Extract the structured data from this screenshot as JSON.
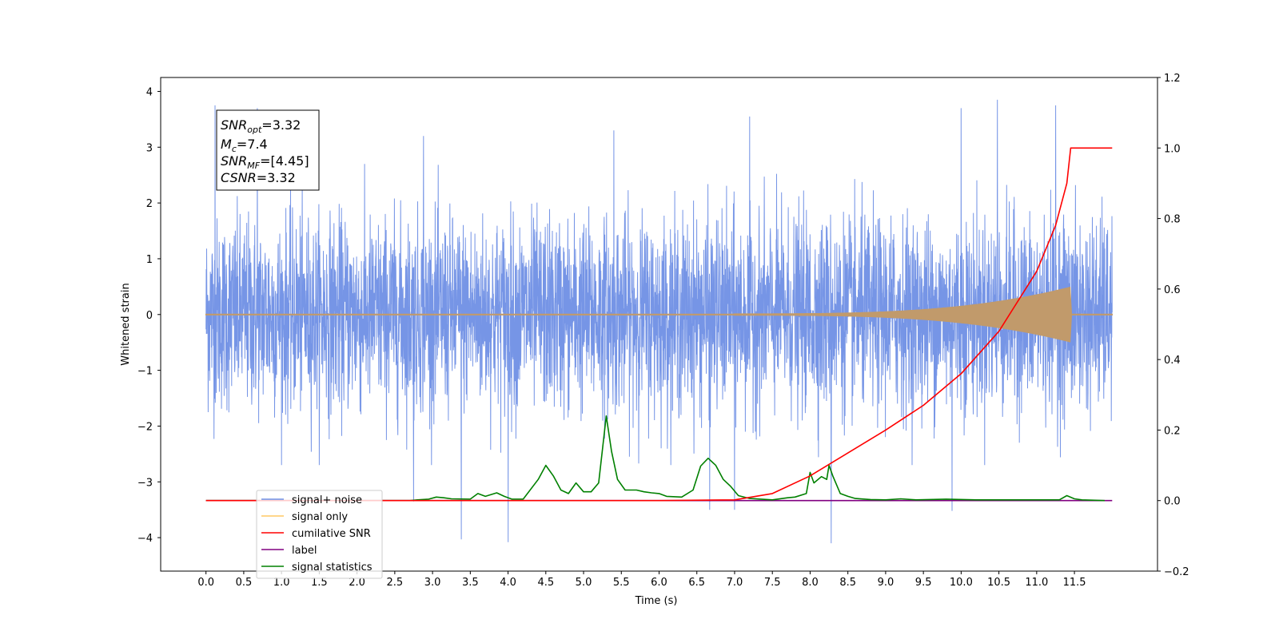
{
  "chart_data": {
    "type": "line",
    "title": "",
    "xlabel": "Time (s)",
    "ylabel": "Whitened strain",
    "xlim": [
      -0.6,
      12.6
    ],
    "ylim": [
      -4.6,
      4.25
    ],
    "y2lim": [
      -0.2,
      1.2
    ],
    "x_ticks": [
      "0.0",
      "0.5",
      "1.0",
      "1.5",
      "2.0",
      "2.5",
      "3.0",
      "3.5",
      "4.0",
      "4.5",
      "5.0",
      "5.5",
      "6.0",
      "6.5",
      "7.0",
      "7.5",
      "8.0",
      "8.5",
      "9.0",
      "9.5",
      "10.0",
      "10.5",
      "11.0",
      "11.5"
    ],
    "y_ticks": [
      "−4",
      "−3",
      "−2",
      "−1",
      "0",
      "1",
      "2",
      "3",
      "4"
    ],
    "y2_ticks": [
      "−0.2",
      "0.0",
      "0.2",
      "0.4",
      "0.6",
      "0.8",
      "1.0",
      "1.2"
    ],
    "legend_position": "lower-left",
    "annotation": {
      "snr_opt": {
        "sym": "SNR",
        "sub": "opt",
        "value": "=3.32"
      },
      "mc": {
        "sym": "M",
        "sub": "c",
        "value": "=7.4"
      },
      "snr_mf": {
        "sym": "SNR",
        "sub": "MF",
        "value": "=[4.45]"
      },
      "csnr": {
        "sym": "CSNR",
        "sub": "",
        "value": "=3.32"
      }
    },
    "series": [
      {
        "name": "signal+ noise",
        "color": "#6f8fe5",
        "axis": "left",
        "x_range": [
          0.0,
          12.0
        ],
        "typical_abs_max": 2.3,
        "peaks": [
          [
            0.12,
            3.75
          ],
          [
            0.68,
            3.7
          ],
          [
            2.88,
            3.2
          ],
          [
            5.4,
            3.3
          ],
          [
            7.2,
            3.55
          ],
          [
            10.0,
            3.7
          ],
          [
            10.48,
            3.85
          ],
          [
            11.25,
            3.75
          ],
          [
            3.38,
            -4.03
          ],
          [
            4.0,
            -4.08
          ],
          [
            8.28,
            -4.1
          ],
          [
            9.88,
            -3.52
          ],
          [
            6.67,
            -3.5
          ],
          [
            7.0,
            -3.5
          ],
          [
            2.75,
            -3.35
          ]
        ]
      },
      {
        "name": "signal only",
        "color": "#c19a6b",
        "axis": "left",
        "x_range": [
          0.0,
          12.0
        ],
        "chirp_onset": 7.0,
        "merger_time": 11.45,
        "peak_amplitude": 0.48
      },
      {
        "name": "cumilative SNR",
        "color": "#ff0000",
        "axis": "right",
        "x": [
          0.0,
          6.0,
          7.0,
          7.5,
          8.0,
          8.5,
          9.0,
          9.5,
          10.0,
          10.5,
          11.0,
          11.25,
          11.4,
          11.45,
          12.0
        ],
        "y": [
          0.0,
          0.0,
          0.002,
          0.02,
          0.07,
          0.135,
          0.2,
          0.27,
          0.36,
          0.48,
          0.65,
          0.78,
          0.9,
          1.0,
          1.0
        ]
      },
      {
        "name": "label",
        "color": "#800080",
        "axis": "right",
        "x": [
          0.0,
          12.0
        ],
        "y": [
          0.0,
          0.0
        ]
      },
      {
        "name": "signal statistics",
        "color": "#008000",
        "axis": "right",
        "x": [
          0.0,
          2.7,
          2.8,
          2.95,
          3.05,
          3.15,
          3.25,
          3.5,
          3.6,
          3.7,
          3.85,
          3.95,
          4.05,
          4.2,
          4.4,
          4.5,
          4.6,
          4.7,
          4.8,
          4.9,
          5.0,
          5.1,
          5.2,
          5.3,
          5.37,
          5.45,
          5.55,
          5.7,
          5.8,
          5.9,
          6.0,
          6.1,
          6.3,
          6.45,
          6.55,
          6.65,
          6.75,
          6.85,
          6.95,
          7.05,
          7.2,
          7.5,
          7.7,
          7.8,
          7.95,
          8.0,
          8.05,
          8.15,
          8.22,
          8.25,
          8.3,
          8.4,
          8.5,
          8.6,
          8.8,
          9.0,
          9.2,
          9.4,
          9.8,
          10.2,
          11.0,
          11.3,
          11.4,
          11.5,
          11.6,
          11.9
        ],
        "y": [
          0.0,
          0.0,
          0.002,
          0.004,
          0.01,
          0.008,
          0.005,
          0.004,
          0.02,
          0.012,
          0.022,
          0.012,
          0.004,
          0.004,
          0.06,
          0.1,
          0.07,
          0.03,
          0.02,
          0.05,
          0.025,
          0.025,
          0.05,
          0.24,
          0.14,
          0.06,
          0.03,
          0.03,
          0.025,
          0.022,
          0.02,
          0.012,
          0.01,
          0.03,
          0.098,
          0.12,
          0.1,
          0.06,
          0.04,
          0.014,
          0.006,
          0.002,
          0.008,
          0.01,
          0.02,
          0.08,
          0.05,
          0.068,
          0.06,
          0.1,
          0.07,
          0.02,
          0.012,
          0.006,
          0.003,
          0.002,
          0.005,
          0.002,
          0.004,
          0.002,
          0.002,
          0.002,
          0.014,
          0.005,
          0.002,
          0.0
        ]
      }
    ]
  }
}
